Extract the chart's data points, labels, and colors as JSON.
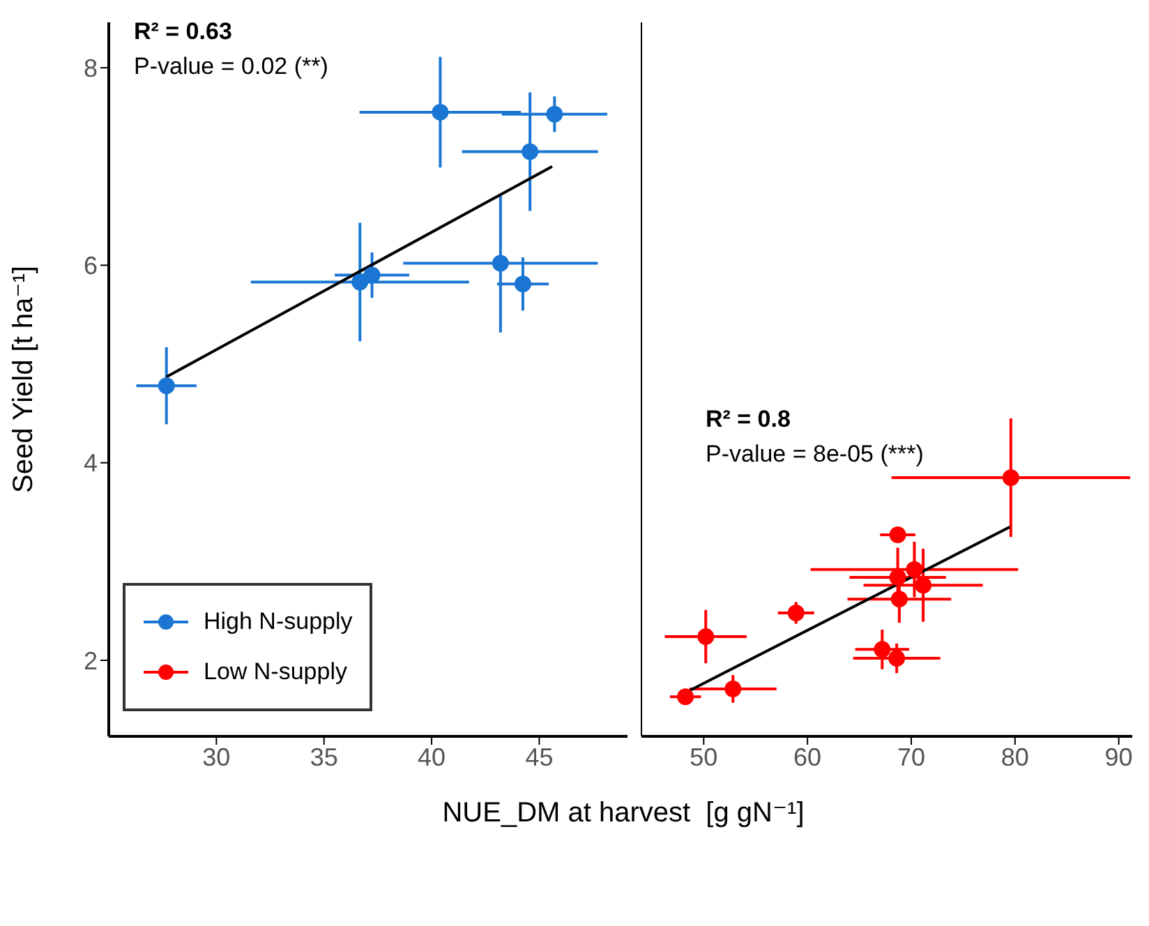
{
  "chart_data": [
    {
      "type": "scatter",
      "ylabel": "Seed Yield [t ha⁻¹]",
      "xlim": [
        25,
        49.1
      ],
      "xticks": [
        30,
        35,
        40,
        45
      ],
      "ylim": [
        1.23,
        8.46
      ],
      "yticks": [
        2,
        4,
        6,
        8
      ],
      "marker": "circle",
      "legend": "bottom left",
      "annotations": [
        "R² = 0.63",
        "P-value = 0.02 (**)"
      ],
      "series": [
        {
          "name": "High N-supply",
          "color": "#1a76d2",
          "x": [
            27.68,
            36.67,
            37.23,
            40.4,
            45.71,
            44.57,
            43.2,
            44.24
          ],
          "values": [
            4.78,
            5.83,
            5.9,
            7.55,
            7.53,
            7.15,
            6.02,
            5.81
          ],
          "xerrors": [
            1.4,
            5.07,
            1.73,
            3.75,
            2.45,
            3.16,
            4.52,
            1.2
          ],
          "errors": [
            0.39,
            0.6,
            0.23,
            0.56,
            0.18,
            0.6,
            0.7,
            0.27
          ]
        },
        {
          "type": "line",
          "color": "#000000",
          "marker": "none",
          "x": [
            27.68,
            45.6
          ],
          "values": [
            4.87,
            7.0
          ]
        }
      ]
    },
    {
      "type": "scatter",
      "xlabel": "NUE_DM at harvest  [g gN⁻¹]",
      "xlim": [
        44,
        91.3
      ],
      "xticks": [
        50,
        60,
        70,
        80,
        90
      ],
      "ylim": [
        1.23,
        8.46
      ],
      "yticks": [
        2,
        4,
        6,
        8
      ],
      "tick_labels": "x",
      "marker": "circle",
      "annotations": [
        "R² = 0.8",
        "P-value = 8e-05 (***)"
      ],
      "series": [
        {
          "name": "Low N-supply",
          "color": "#ff0000",
          "x": [
            48.24,
            52.82,
            50.2,
            58.9,
            68.7,
            68.7,
            70.3,
            71.15,
            68.85,
            67.2,
            68.6,
            79.6
          ],
          "values": [
            1.63,
            1.71,
            2.24,
            2.48,
            3.27,
            2.84,
            2.92,
            2.76,
            2.62,
            2.11,
            2.02,
            3.85
          ],
          "xerrors": [
            1.5,
            4.2,
            3.95,
            1.75,
            1.7,
            4.65,
            10,
            5.75,
            5.0,
            2.6,
            4.2,
            11.5
          ],
          "errors": [
            0.05,
            0.14,
            0.27,
            0.11,
            null,
            0.3,
            0.28,
            0.37,
            0.24,
            0.2,
            0.15,
            0.6
          ]
        },
        {
          "type": "line",
          "color": "#000000",
          "marker": "none",
          "x": [
            48.2,
            79.5
          ],
          "values": [
            1.67,
            3.35
          ]
        }
      ]
    }
  ]
}
